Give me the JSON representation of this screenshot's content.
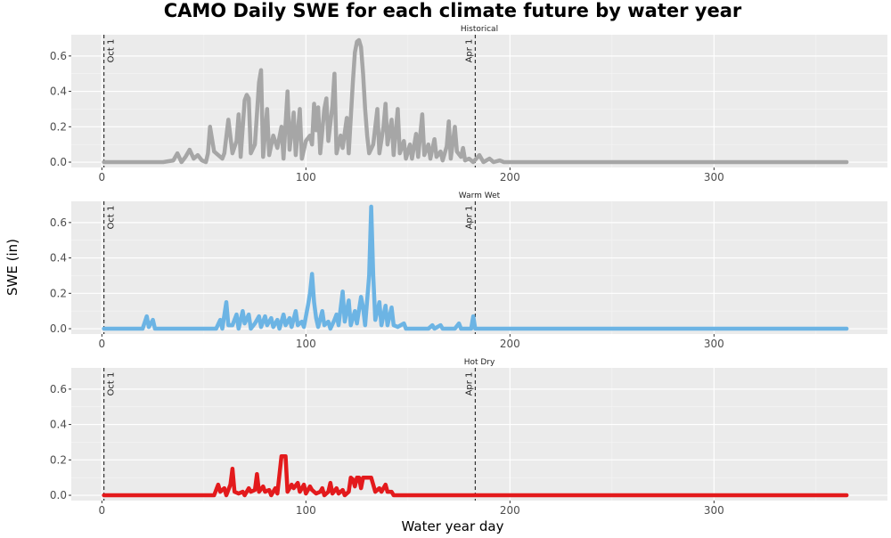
{
  "chart_data": {
    "type": "line",
    "title": "CAMO Daily SWE for each climate future by water year",
    "xlabel": "Water year day",
    "ylabel": "SWE (in)",
    "xlim": [
      -15,
      385
    ],
    "ylim": [
      -0.03,
      0.72
    ],
    "x_ticks": [
      0,
      100,
      200,
      300
    ],
    "y_ticks": [
      0.0,
      0.2,
      0.4,
      0.6
    ],
    "y_tick_labels": [
      "0.0",
      "0.2",
      "0.4",
      "0.6"
    ],
    "grid": true,
    "reference_lines": [
      {
        "x": 1,
        "label": "Oct 1"
      },
      {
        "x": 183,
        "label": "Apr 1"
      }
    ],
    "series": [
      {
        "name": "Historical",
        "color": "#a6a6a6",
        "points": [
          [
            1,
            0
          ],
          [
            30,
            0
          ],
          [
            35,
            0.01
          ],
          [
            37,
            0.05
          ],
          [
            39,
            0
          ],
          [
            41,
            0.03
          ],
          [
            43,
            0.07
          ],
          [
            45,
            0.02
          ],
          [
            47,
            0.04
          ],
          [
            49,
            0.01
          ],
          [
            51,
            0
          ],
          [
            52,
            0.05
          ],
          [
            53,
            0.2
          ],
          [
            55,
            0.06
          ],
          [
            57,
            0.04
          ],
          [
            59,
            0.02
          ],
          [
            60,
            0.05
          ],
          [
            62,
            0.24
          ],
          [
            64,
            0.05
          ],
          [
            66,
            0.12
          ],
          [
            67,
            0.27
          ],
          [
            68,
            0.03
          ],
          [
            70,
            0.35
          ],
          [
            71,
            0.38
          ],
          [
            72,
            0.36
          ],
          [
            73,
            0.05
          ],
          [
            75,
            0.1
          ],
          [
            77,
            0.45
          ],
          [
            78,
            0.52
          ],
          [
            79,
            0.03
          ],
          [
            81,
            0.3
          ],
          [
            82,
            0.04
          ],
          [
            84,
            0.15
          ],
          [
            86,
            0.08
          ],
          [
            88,
            0.2
          ],
          [
            89,
            0.02
          ],
          [
            91,
            0.4
          ],
          [
            92,
            0.07
          ],
          [
            94,
            0.28
          ],
          [
            95,
            0.04
          ],
          [
            97,
            0.3
          ],
          [
            98,
            0.02
          ],
          [
            100,
            0.12
          ],
          [
            102,
            0.15
          ],
          [
            103,
            0.1
          ],
          [
            104,
            0.33
          ],
          [
            105,
            0.18
          ],
          [
            106,
            0.31
          ],
          [
            107,
            0.05
          ],
          [
            109,
            0.3
          ],
          [
            110,
            0.36
          ],
          [
            111,
            0.12
          ],
          [
            113,
            0.32
          ],
          [
            114,
            0.5
          ],
          [
            115,
            0.05
          ],
          [
            117,
            0.15
          ],
          [
            118,
            0.08
          ],
          [
            120,
            0.25
          ],
          [
            121,
            0.05
          ],
          [
            123,
            0.45
          ],
          [
            124,
            0.62
          ],
          [
            125,
            0.68
          ],
          [
            126,
            0.69
          ],
          [
            127,
            0.65
          ],
          [
            128,
            0.5
          ],
          [
            129,
            0.3
          ],
          [
            130,
            0.15
          ],
          [
            131,
            0.05
          ],
          [
            133,
            0.1
          ],
          [
            135,
            0.3
          ],
          [
            136,
            0.05
          ],
          [
            138,
            0.2
          ],
          [
            139,
            0.33
          ],
          [
            140,
            0.1
          ],
          [
            142,
            0.24
          ],
          [
            143,
            0.04
          ],
          [
            145,
            0.3
          ],
          [
            146,
            0.05
          ],
          [
            148,
            0.12
          ],
          [
            149,
            0.02
          ],
          [
            151,
            0.1
          ],
          [
            152,
            0.02
          ],
          [
            154,
            0.16
          ],
          [
            155,
            0.03
          ],
          [
            157,
            0.27
          ],
          [
            158,
            0.04
          ],
          [
            160,
            0.1
          ],
          [
            161,
            0.02
          ],
          [
            163,
            0.13
          ],
          [
            164,
            0.03
          ],
          [
            166,
            0.06
          ],
          [
            167,
            0.01
          ],
          [
            169,
            0.09
          ],
          [
            170,
            0.23
          ],
          [
            171,
            0.02
          ],
          [
            173,
            0.2
          ],
          [
            174,
            0.06
          ],
          [
            176,
            0.03
          ],
          [
            177,
            0.08
          ],
          [
            178,
            0.01
          ],
          [
            180,
            0.02
          ],
          [
            182,
            0
          ],
          [
            185,
            0.04
          ],
          [
            187,
            0
          ],
          [
            190,
            0.02
          ],
          [
            192,
            0
          ],
          [
            195,
            0.01
          ],
          [
            197,
            0
          ],
          [
            365,
            0
          ]
        ]
      },
      {
        "name": "Warm Wet",
        "color": "#6cb4e4",
        "points": [
          [
            1,
            0
          ],
          [
            20,
            0
          ],
          [
            22,
            0.07
          ],
          [
            23,
            0.01
          ],
          [
            25,
            0.05
          ],
          [
            26,
            0
          ],
          [
            56,
            0
          ],
          [
            58,
            0.05
          ],
          [
            59,
            0
          ],
          [
            61,
            0.15
          ],
          [
            62,
            0.02
          ],
          [
            64,
            0.02
          ],
          [
            66,
            0.08
          ],
          [
            67,
            0
          ],
          [
            69,
            0.1
          ],
          [
            70,
            0.03
          ],
          [
            72,
            0.08
          ],
          [
            73,
            0
          ],
          [
            75,
            0.03
          ],
          [
            77,
            0.07
          ],
          [
            78,
            0.01
          ],
          [
            80,
            0.07
          ],
          [
            81,
            0.02
          ],
          [
            83,
            0.06
          ],
          [
            84,
            0.01
          ],
          [
            86,
            0.05
          ],
          [
            87,
            0
          ],
          [
            89,
            0.08
          ],
          [
            90,
            0.02
          ],
          [
            92,
            0.06
          ],
          [
            93,
            0.01
          ],
          [
            95,
            0.1
          ],
          [
            96,
            0.02
          ],
          [
            98,
            0.04
          ],
          [
            99,
            0.01
          ],
          [
            101,
            0.13
          ],
          [
            102,
            0.2
          ],
          [
            103,
            0.31
          ],
          [
            104,
            0.15
          ],
          [
            105,
            0.06
          ],
          [
            106,
            0.01
          ],
          [
            108,
            0.1
          ],
          [
            109,
            0.02
          ],
          [
            111,
            0.04
          ],
          [
            112,
            0
          ],
          [
            114,
            0.05
          ],
          [
            115,
            0.08
          ],
          [
            116,
            0.02
          ],
          [
            118,
            0.21
          ],
          [
            119,
            0.04
          ],
          [
            121,
            0.16
          ],
          [
            122,
            0.02
          ],
          [
            124,
            0.1
          ],
          [
            125,
            0.03
          ],
          [
            127,
            0.18
          ],
          [
            128,
            0.12
          ],
          [
            129,
            0.02
          ],
          [
            131,
            0.3
          ],
          [
            132,
            0.69
          ],
          [
            133,
            0.3
          ],
          [
            134,
            0.05
          ],
          [
            136,
            0.15
          ],
          [
            137,
            0.02
          ],
          [
            139,
            0.13
          ],
          [
            140,
            0.02
          ],
          [
            142,
            0.12
          ],
          [
            143,
            0.02
          ],
          [
            145,
            0.01
          ],
          [
            148,
            0.03
          ],
          [
            149,
            0
          ],
          [
            160,
            0
          ],
          [
            162,
            0.02
          ],
          [
            163,
            0
          ],
          [
            166,
            0.02
          ],
          [
            167,
            0
          ],
          [
            173,
            0
          ],
          [
            175,
            0.03
          ],
          [
            176,
            0
          ],
          [
            181,
            0
          ],
          [
            182,
            0.07
          ],
          [
            183,
            0
          ],
          [
            365,
            0
          ]
        ]
      },
      {
        "name": "Hot Dry",
        "color": "#e31a1c",
        "points": [
          [
            1,
            0
          ],
          [
            55,
            0
          ],
          [
            57,
            0.06
          ],
          [
            58,
            0.02
          ],
          [
            60,
            0.04
          ],
          [
            61,
            0
          ],
          [
            63,
            0.06
          ],
          [
            64,
            0.15
          ],
          [
            65,
            0.02
          ],
          [
            67,
            0.01
          ],
          [
            69,
            0.02
          ],
          [
            70,
            0
          ],
          [
            72,
            0.04
          ],
          [
            73,
            0.02
          ],
          [
            75,
            0.03
          ],
          [
            76,
            0.12
          ],
          [
            77,
            0.02
          ],
          [
            79,
            0.05
          ],
          [
            80,
            0.02
          ],
          [
            82,
            0.03
          ],
          [
            83,
            0
          ],
          [
            85,
            0.04
          ],
          [
            86,
            0.01
          ],
          [
            88,
            0.22
          ],
          [
            89,
            0.22
          ],
          [
            90,
            0.22
          ],
          [
            91,
            0.02
          ],
          [
            93,
            0.06
          ],
          [
            94,
            0.04
          ],
          [
            96,
            0.07
          ],
          [
            97,
            0.02
          ],
          [
            99,
            0.06
          ],
          [
            100,
            0.01
          ],
          [
            102,
            0.05
          ],
          [
            103,
            0.03
          ],
          [
            105,
            0.01
          ],
          [
            107,
            0.02
          ],
          [
            108,
            0.04
          ],
          [
            109,
            0
          ],
          [
            111,
            0.02
          ],
          [
            112,
            0.07
          ],
          [
            113,
            0.01
          ],
          [
            115,
            0.04
          ],
          [
            116,
            0.01
          ],
          [
            118,
            0.03
          ],
          [
            119,
            0
          ],
          [
            121,
            0.02
          ],
          [
            122,
            0.1
          ],
          [
            123,
            0.09
          ],
          [
            124,
            0.05
          ],
          [
            125,
            0.1
          ],
          [
            126,
            0.1
          ],
          [
            127,
            0.04
          ],
          [
            128,
            0.1
          ],
          [
            129,
            0.1
          ],
          [
            132,
            0.1
          ],
          [
            133,
            0.06
          ],
          [
            134,
            0.02
          ],
          [
            136,
            0.04
          ],
          [
            137,
            0.02
          ],
          [
            139,
            0.06
          ],
          [
            140,
            0.02
          ],
          [
            142,
            0.02
          ],
          [
            143,
            0
          ],
          [
            365,
            0
          ]
        ]
      }
    ]
  }
}
